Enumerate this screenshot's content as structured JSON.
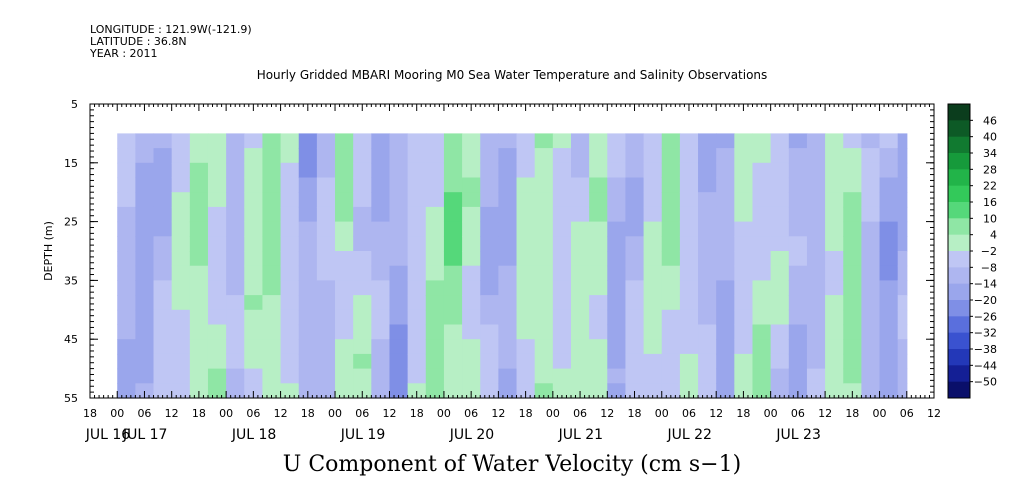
{
  "header": {
    "longitude": "LONGITUDE : 121.9W(-121.9)",
    "latitude": "LATITUDE : 36.8N",
    "year": "YEAR : 2011"
  },
  "chart_data": {
    "type": "heatmap",
    "title": "Hourly Gridded MBARI Mooring M0 Sea Water Temperature and Salinity Observations",
    "xlabel": "U Component of Water Velocity (cm s−1)",
    "ylabel": "DEPTH (m)",
    "ylim": [
      55,
      5
    ],
    "y_ticks": [
      "5",
      "15",
      "25",
      "35",
      "45",
      "55"
    ],
    "x_hour_ticks": [
      "18",
      "00",
      "06",
      "12",
      "18",
      "00",
      "06",
      "12",
      "18",
      "00",
      "06",
      "12",
      "18",
      "00",
      "06",
      "12",
      "18",
      "00",
      "06",
      "12",
      "18",
      "00",
      "06",
      "12",
      "18",
      "00",
      "06",
      "12",
      "18",
      "00",
      "06",
      "12"
    ],
    "x_day_labels": [
      "JUL 16",
      "JUL 17",
      "JUL 18",
      "JUL 19",
      "JUL 20",
      "JUL 21",
      "JUL 22",
      "JUL 23"
    ],
    "data_start_hours": 6,
    "data_end_hours": 180,
    "colorbar": {
      "levels": [
        "46",
        "40",
        "34",
        "28",
        "22",
        "16",
        "10",
        "4",
        "−2",
        "−8",
        "−14",
        "−20",
        "−26",
        "−32",
        "−38",
        "−44",
        "−50"
      ],
      "colors": [
        "#0b3d1d",
        "#0d5a26",
        "#117a30",
        "#169a3b",
        "#22b449",
        "#33c95a",
        "#55d87a",
        "#8fe6a5",
        "#b7efc5",
        "#bfc6f4",
        "#aeb6f0",
        "#9aa6ec",
        "#7f8fe6",
        "#5a6fdd",
        "#3a52d0",
        "#2338b8",
        "#141f95",
        "#0a0f6a"
      ]
    },
    "profile_bands": [
      {
        "t": 6,
        "v": -6
      },
      {
        "t": 10,
        "v": -9
      },
      {
        "t": 14,
        "v": -4
      },
      {
        "t": 18,
        "v": 3
      },
      {
        "t": 22,
        "v": 9
      },
      {
        "t": 26,
        "v": 5
      },
      {
        "t": 30,
        "v": -4
      },
      {
        "t": 34,
        "v": 6
      },
      {
        "t": 38,
        "v": 11
      },
      {
        "t": 42,
        "v": 4
      },
      {
        "t": 46,
        "v": -8
      },
      {
        "t": 50,
        "v": -3
      },
      {
        "t": 54,
        "v": 7
      },
      {
        "t": 58,
        "v": 3
      },
      {
        "t": 62,
        "v": -6
      },
      {
        "t": 66,
        "v": -10
      },
      {
        "t": 70,
        "v": 2
      },
      {
        "t": 74,
        "v": 8
      },
      {
        "t": 78,
        "v": 12
      },
      {
        "t": 82,
        "v": 6
      },
      {
        "t": 86,
        "v": -5
      },
      {
        "t": 90,
        "v": -9
      },
      {
        "t": 94,
        "v": 5
      },
      {
        "t": 98,
        "v": 9
      },
      {
        "t": 102,
        "v": 3
      },
      {
        "t": 106,
        "v": 2
      },
      {
        "t": 110,
        "v": 6
      },
      {
        "t": 114,
        "v": -8
      },
      {
        "t": 118,
        "v": -3
      },
      {
        "t": 122,
        "v": 4
      },
      {
        "t": 126,
        "v": 8
      },
      {
        "t": 130,
        "v": 3
      },
      {
        "t": 134,
        "v": -5
      },
      {
        "t": 138,
        "v": -9
      },
      {
        "t": 142,
        "v": 4
      },
      {
        "t": 146,
        "v": 6
      },
      {
        "t": 150,
        "v": 1
      },
      {
        "t": 154,
        "v": -6
      },
      {
        "t": 158,
        "v": -3
      },
      {
        "t": 162,
        "v": 5
      },
      {
        "t": 166,
        "v": 9
      },
      {
        "t": 170,
        "v": -4
      },
      {
        "t": 174,
        "v": -10
      },
      {
        "t": 178,
        "v": -7
      }
    ]
  }
}
